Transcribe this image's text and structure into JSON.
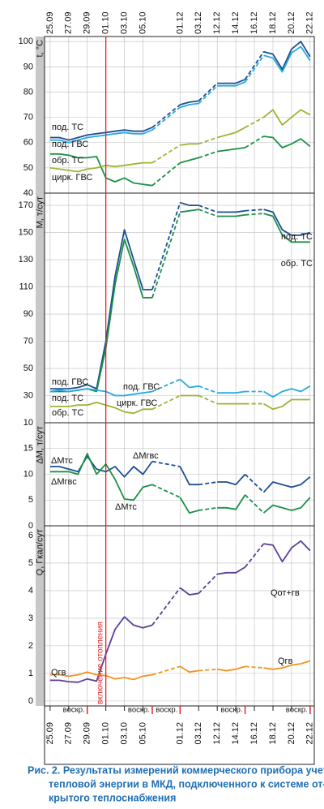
{
  "chart_data": [
    {
      "type": "line",
      "y_label": "t, °C",
      "x": [
        0,
        1,
        2,
        3,
        4,
        5,
        6,
        7,
        8,
        9,
        10,
        11,
        14,
        15,
        16,
        18,
        19,
        20,
        21,
        23,
        24,
        25,
        26,
        27,
        28
      ],
      "xlim": [
        -0.6,
        28.45
      ],
      "xticks": [
        {
          "value": 0,
          "label": "25.09"
        },
        {
          "value": 2,
          "label": "27.09"
        },
        {
          "value": 4,
          "label": "29.09"
        },
        {
          "value": 6,
          "label": "01.10"
        },
        {
          "value": 8,
          "label": "03.10"
        },
        {
          "value": 10,
          "label": "05.10"
        },
        {
          "value": 14,
          "label": "01.12"
        },
        {
          "value": 16,
          "label": "03.12"
        },
        {
          "value": 18,
          "label": "12.12"
        },
        {
          "value": 20,
          "label": "14.12"
        },
        {
          "value": 22,
          "label": "16.12"
        },
        {
          "value": 24,
          "label": "18.12"
        },
        {
          "value": 26,
          "label": "20.12"
        },
        {
          "value": 28,
          "label": "22.12"
        }
      ],
      "ylim": [
        40,
        102
      ],
      "yticks": [
        40,
        50,
        60,
        70,
        80,
        90,
        100
      ],
      "grid": true,
      "series": [
        {
          "name": "под. ТС",
          "color": "#1d4f91",
          "values": [
            62,
            62,
            61,
            62,
            63,
            63.5,
            64,
            64.5,
            65,
            64.5,
            64.5,
            66,
            75,
            76,
            76.5,
            83.5,
            83.5,
            83.5,
            85,
            96,
            95,
            89,
            97,
            100,
            94
          ]
        },
        {
          "name": "под. ГВС",
          "color": "#27aae1",
          "values": [
            61,
            61,
            60,
            61,
            62,
            62.5,
            63,
            63.5,
            64,
            63.5,
            63.5,
            65,
            74,
            75,
            75.5,
            82.5,
            82.5,
            82.5,
            84,
            94.5,
            93.5,
            88,
            95.5,
            98,
            92.5
          ]
        },
        {
          "name": "обр. ТС",
          "color": "#1a9146",
          "values": [
            55.5,
            55.5,
            55,
            54,
            54,
            54.5,
            46,
            44.5,
            46,
            44,
            43.5,
            43,
            52,
            53,
            54,
            56.5,
            57,
            57.5,
            58,
            62.5,
            62,
            58,
            59.5,
            61.5,
            58.5
          ]
        },
        {
          "name": "цирк. ГВС",
          "color": "#9bb536",
          "values": [
            50,
            49.5,
            49,
            48.5,
            49.5,
            50,
            51,
            50.5,
            51,
            51.5,
            52,
            52,
            59,
            59.5,
            59.5,
            62,
            63,
            64,
            66,
            70,
            73,
            67,
            70,
            73,
            71
          ]
        }
      ]
    },
    {
      "type": "line",
      "y_label": "M, т/сут",
      "x": [
        0,
        1,
        2,
        3,
        4,
        5,
        6,
        7,
        8,
        9,
        10,
        11,
        14,
        15,
        16,
        18,
        19,
        20,
        21,
        23,
        24,
        25,
        26,
        27,
        28
      ],
      "xlim": [
        -0.6,
        28.45
      ],
      "xticks": [
        0,
        2,
        4,
        6,
        8,
        10,
        14,
        16,
        18,
        20,
        22,
        24,
        26,
        28
      ],
      "ylim": [
        10,
        179
      ],
      "yticks": [
        10,
        30,
        50,
        70,
        90,
        110,
        130,
        150,
        170
      ],
      "grid": true,
      "series": [
        {
          "name": "под. ТС",
          "color": "#1d4f91",
          "values": [
            35,
            35,
            35,
            36,
            38,
            35,
            70,
            118,
            152,
            130,
            108,
            108,
            172,
            170,
            170,
            165,
            165,
            165,
            166,
            167,
            165,
            152,
            148,
            148,
            150
          ]
        },
        {
          "name": "обр. ТС",
          "color": "#1a9146",
          "values": [
            33,
            33,
            33,
            34,
            35,
            33,
            65,
            112,
            145,
            125,
            102,
            102,
            165,
            166,
            167,
            162,
            162,
            162,
            163,
            164,
            162,
            148,
            143,
            143,
            143
          ]
        },
        {
          "name": "под. ГВС",
          "color": "#27aae1",
          "values": [
            33,
            34,
            33,
            34,
            35,
            34,
            33,
            30,
            30,
            31,
            32,
            33,
            42,
            36,
            37,
            32,
            32,
            32,
            33,
            33,
            29,
            33,
            35,
            33,
            37
          ]
        },
        {
          "name": "цирк. ГВС",
          "color": "#9bb536",
          "values": [
            22,
            22,
            22,
            23,
            23,
            25,
            23,
            21,
            18,
            17,
            20,
            20,
            30,
            30,
            30,
            24,
            24,
            24,
            24,
            24,
            20,
            22,
            27,
            27,
            27
          ]
        }
      ]
    },
    {
      "type": "line",
      "y_label": "ΔM, т/сут",
      "x": [
        0,
        1,
        2,
        3,
        4,
        5,
        6,
        7,
        8,
        9,
        10,
        11,
        14,
        15,
        16,
        18,
        19,
        20,
        21,
        23,
        24,
        25,
        26,
        27,
        28
      ],
      "xlim": [
        -0.6,
        28.45
      ],
      "xticks": [
        0,
        2,
        4,
        6,
        8,
        10,
        14,
        16,
        18,
        20,
        22,
        24,
        26,
        28
      ],
      "ylim": [
        0,
        20
      ],
      "yticks": [
        0,
        5,
        10,
        15
      ],
      "grid": true,
      "series": [
        {
          "name": "ΔMгвс",
          "color": "#1d4f91",
          "values": [
            11.5,
            11.5,
            11,
            10.5,
            13.5,
            11,
            10.5,
            11.5,
            9.5,
            11.5,
            10,
            12.5,
            11.5,
            8,
            8,
            8.5,
            8.5,
            8,
            10,
            6.5,
            8.5,
            8,
            7.5,
            8,
            9.5
          ]
        },
        {
          "name": "ΔMтс",
          "color": "#1a9146",
          "values": [
            10.5,
            10.5,
            10.5,
            10,
            14,
            10,
            12,
            9,
            5.2,
            5,
            7.5,
            8,
            5.5,
            2.5,
            3,
            3.5,
            3.5,
            3.2,
            6,
            2.5,
            4,
            3.5,
            3,
            3.5,
            5.5
          ]
        }
      ]
    },
    {
      "type": "line",
      "y_label": "Q, Гкал/сут",
      "x": [
        0,
        1,
        2,
        3,
        4,
        5,
        6,
        7,
        8,
        9,
        10,
        11,
        14,
        15,
        16,
        18,
        19,
        20,
        21,
        23,
        24,
        25,
        26,
        27,
        28
      ],
      "xlim": [
        -0.6,
        28.45
      ],
      "xticks": [
        {
          "value": 0,
          "label": "25.09"
        },
        {
          "value": 2,
          "label": "27.09"
        },
        {
          "value": 4,
          "label": "29.09"
        },
        {
          "value": 6,
          "label": "01.10"
        },
        {
          "value": 8,
          "label": "03.10"
        },
        {
          "value": 10,
          "label": "05.10"
        },
        {
          "value": 14,
          "label": "01.12"
        },
        {
          "value": 16,
          "label": "03.12"
        },
        {
          "value": 18,
          "label": "12.12"
        },
        {
          "value": 20,
          "label": "14.12"
        },
        {
          "value": 22,
          "label": "16.12"
        },
        {
          "value": 24,
          "label": "18.12"
        },
        {
          "value": 26,
          "label": "20.12"
        },
        {
          "value": 28,
          "label": "22.12"
        }
      ],
      "ylim": [
        -0.18,
        6.35
      ],
      "yticks": [
        0,
        1,
        2,
        3,
        4,
        5,
        6
      ],
      "grid": true,
      "series": [
        {
          "name": "Qот+гв",
          "color": "#5b3f99",
          "values": [
            0.75,
            0.75,
            0.7,
            0.68,
            0.8,
            0.72,
            1.7,
            2.6,
            3.05,
            2.75,
            2.65,
            2.75,
            4.1,
            3.85,
            3.9,
            4.6,
            4.65,
            4.65,
            4.85,
            5.7,
            5.65,
            5.05,
            5.55,
            5.8,
            5.45
          ]
        },
        {
          "name": "Qгв",
          "color": "#f29322",
          "values": [
            0.95,
            0.95,
            0.9,
            0.95,
            1.05,
            0.95,
            0.92,
            0.8,
            0.85,
            0.78,
            0.9,
            0.95,
            1.25,
            1.05,
            1.1,
            1.15,
            1.1,
            1.15,
            1.25,
            1.2,
            1.15,
            1.2,
            1.3,
            1.35,
            1.45
          ]
        }
      ],
      "vline": {
        "x": 6,
        "label": "включение отопления",
        "color": "#e0262b"
      },
      "markers": [
        {
          "x": 4,
          "label": "воскр."
        },
        {
          "x": 11,
          "label": "воскр."
        },
        {
          "x": 14,
          "label": "воскр."
        },
        {
          "x": 21,
          "label": "воскр."
        },
        {
          "x": 28,
          "label": "воскр."
        }
      ]
    }
  ],
  "caption": [
    "Рис. 2. Результаты измерений коммерческого прибора учета",
    "тепловой энергии в МКД, подключенного к системе от-",
    "крытого теплоснабжения"
  ]
}
